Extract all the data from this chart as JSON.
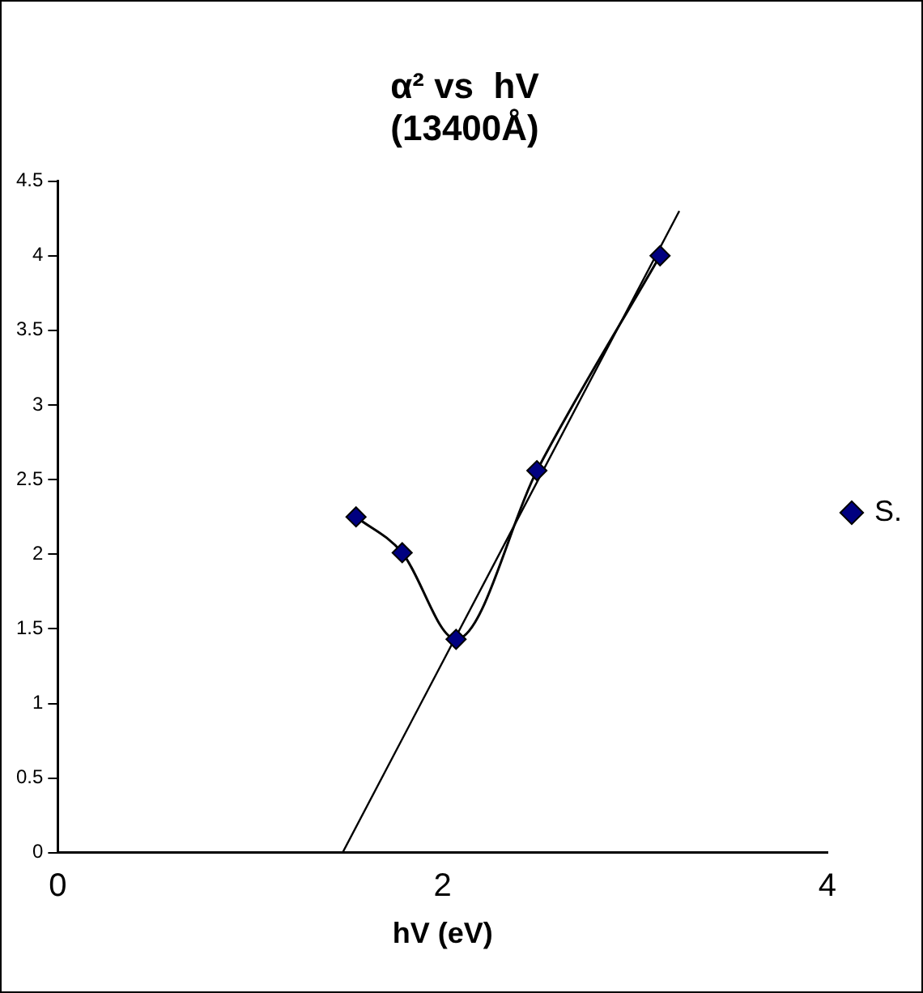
{
  "chart_data": {
    "type": "line",
    "title": "α² vs  hV\n(13400Å)",
    "xlabel": "hV (eV)",
    "xlim": [
      0,
      4
    ],
    "xticks": [
      0,
      2,
      4
    ],
    "ylim": [
      0,
      4.5
    ],
    "yticks": [
      0,
      0.5,
      1,
      1.5,
      2,
      2.5,
      3,
      3.5,
      4,
      4.5
    ],
    "grid": false,
    "legend": "right",
    "marker": "diamond",
    "series": [
      {
        "name": "S.",
        "color": "#000080",
        "x": [
          1.55,
          1.79,
          2.07,
          2.49,
          3.13
        ],
        "values": [
          2.25,
          2.01,
          1.43,
          2.56,
          4.0
        ]
      },
      {
        "type": "line",
        "color": "#000000",
        "marker": "none",
        "x": [
          1.48,
          3.23
        ],
        "values": [
          0,
          4.3
        ]
      }
    ]
  }
}
